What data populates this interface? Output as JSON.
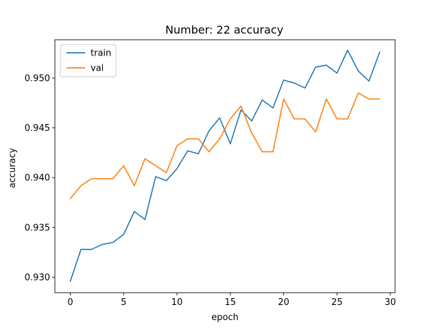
{
  "chart_data": {
    "type": "line",
    "title": "Number: 22 accuracy",
    "xlabel": "epoch",
    "ylabel": "accuracy",
    "xlim": [
      -1.45,
      30.45
    ],
    "ylim": [
      0.92845,
      0.95385
    ],
    "xticks": [
      0,
      5,
      10,
      15,
      20,
      25,
      30
    ],
    "yticks": [
      0.93,
      0.935,
      0.94,
      0.945,
      0.95
    ],
    "ytick_labels": [
      "0.930",
      "0.935",
      "0.940",
      "0.945",
      "0.950"
    ],
    "grid": false,
    "legend_position": "upper-left",
    "x": [
      0,
      1,
      2,
      3,
      4,
      5,
      6,
      7,
      8,
      9,
      10,
      11,
      12,
      13,
      14,
      15,
      16,
      17,
      18,
      19,
      20,
      21,
      22,
      23,
      24,
      25,
      26,
      27,
      28,
      29
    ],
    "series": [
      {
        "name": "train",
        "color": "#1f77b4",
        "values": [
          0.9296,
          0.9328,
          0.9328,
          0.9333,
          0.9335,
          0.9343,
          0.9366,
          0.9358,
          0.9401,
          0.9397,
          0.9409,
          0.9427,
          0.9424,
          0.9447,
          0.946,
          0.9434,
          0.9468,
          0.9457,
          0.9478,
          0.947,
          0.9498,
          0.9495,
          0.949,
          0.9511,
          0.9513,
          0.9505,
          0.9528,
          0.9507,
          0.9497,
          0.9526
        ]
      },
      {
        "name": "val",
        "color": "#ff7f0e",
        "values": [
          0.9379,
          0.9392,
          0.9399,
          0.9399,
          0.9399,
          0.9412,
          0.9392,
          0.9419,
          0.9412,
          0.9405,
          0.9432,
          0.9439,
          0.9439,
          0.9426,
          0.9439,
          0.9459,
          0.9472,
          0.9445,
          0.9426,
          0.9426,
          0.9479,
          0.9459,
          0.9459,
          0.9446,
          0.9479,
          0.9459,
          0.9459,
          0.9485,
          0.9479,
          0.9479
        ]
      }
    ]
  }
}
